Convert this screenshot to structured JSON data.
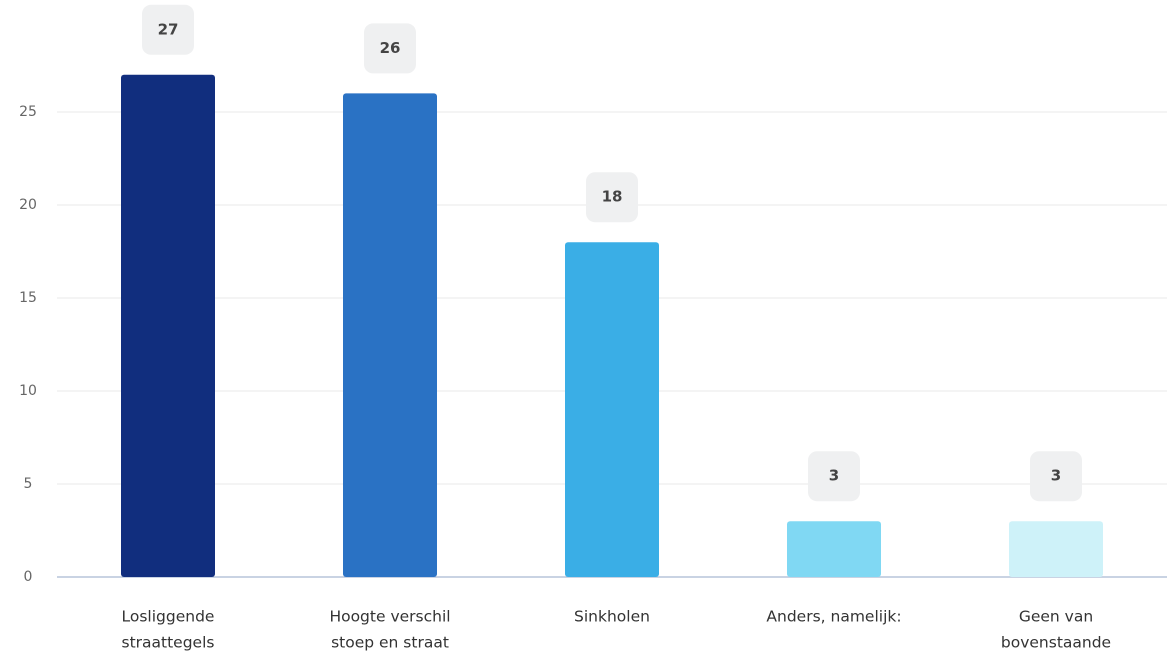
{
  "chart_data": {
    "type": "bar",
    "categories": [
      [
        "Losliggende",
        "straattegels"
      ],
      [
        "Hoogte verschil",
        "stoep en straat"
      ],
      [
        "Sinkholen"
      ],
      [
        "Anders, namelijk:"
      ],
      [
        "Geen van",
        "bovenstaande"
      ]
    ],
    "values": [
      27,
      26,
      18,
      3,
      3
    ],
    "colors": [
      "#112e7e",
      "#2a72c4",
      "#3aaee6",
      "#80d8f3",
      "#cef2f9"
    ],
    "ylim": [
      0,
      30
    ],
    "yticks": [
      0,
      5,
      10,
      15,
      20,
      25
    ],
    "grid": true
  }
}
